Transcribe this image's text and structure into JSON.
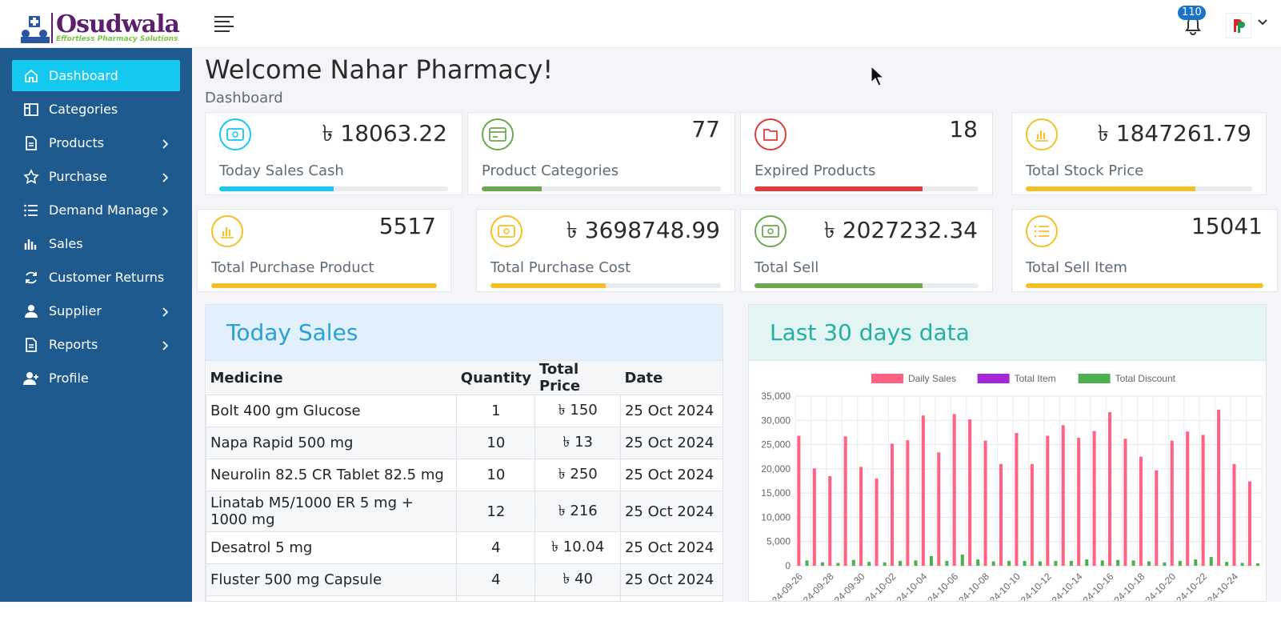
{
  "header": {
    "logo_text": "Osudwala",
    "logo_subtitle": "Effortless Pharmacy Solutions",
    "notification_count": "110"
  },
  "sidebar": {
    "items": [
      {
        "label": "Dashboard",
        "icon": "home-icon",
        "has_arrow": false,
        "active": true
      },
      {
        "label": "Categories",
        "icon": "columns-icon",
        "has_arrow": false
      },
      {
        "label": "Products",
        "icon": "document-icon",
        "has_arrow": true
      },
      {
        "label": "Purchase",
        "icon": "star-icon",
        "has_arrow": true
      },
      {
        "label": "Demand Manage",
        "icon": "list-icon",
        "has_arrow": true
      },
      {
        "label": "Sales",
        "icon": "bar-chart-icon",
        "has_arrow": false
      },
      {
        "label": "Customer Returns",
        "icon": "refresh-icon",
        "has_arrow": false
      },
      {
        "label": "Supplier",
        "icon": "user-icon",
        "has_arrow": true
      },
      {
        "label": "Reports",
        "icon": "document-icon",
        "has_arrow": true
      },
      {
        "label": "Profile",
        "icon": "user-plus-icon",
        "has_arrow": false
      }
    ]
  },
  "page": {
    "welcome": "Welcome Nahar Pharmacy!",
    "breadcrumb": "Dashboard"
  },
  "stats": [
    {
      "label": "Today Sales Cash",
      "value": "৳ 18063.22",
      "color": "#14c8ef",
      "progress": 0.5,
      "icon": "money-icon"
    },
    {
      "label": "Product Categories",
      "value": "77",
      "color": "#6aa84f",
      "progress": 0.25,
      "icon": "card-icon"
    },
    {
      "label": "Expired Products",
      "value": "18",
      "color": "#e03a3e",
      "progress": 0.75,
      "icon": "folder-icon"
    },
    {
      "label": "Total Stock Price",
      "value": "৳ 1847261.79",
      "color": "#f3c026",
      "progress": 0.75,
      "icon": "bar-chart-icon"
    },
    {
      "label": "Total Purchase Product",
      "value": "5517",
      "color": "#f3c026",
      "progress": 1.0,
      "icon": "bar-chart-icon"
    },
    {
      "label": "Total Purchase Cost",
      "value": "৳ 3698748.99",
      "color": "#f3c026",
      "progress": 0.5,
      "icon": "money-icon"
    },
    {
      "label": "Total Sell",
      "value": "৳ 2027232.34",
      "color": "#6aa84f",
      "progress": 0.75,
      "icon": "money-icon"
    },
    {
      "label": "Total Sell Item",
      "value": "15041",
      "color": "#f3c026",
      "progress": 1.0,
      "icon": "list-icon"
    }
  ],
  "today_sales": {
    "title": "Today Sales",
    "columns": [
      "Medicine",
      "Quantity",
      "Total Price",
      "Date"
    ],
    "rows": [
      [
        "Bolt 400 gm Glucose",
        "1",
        "৳ 150",
        "25 Oct 2024"
      ],
      [
        "Napa Rapid 500 mg",
        "10",
        "৳ 13",
        "25 Oct 2024"
      ],
      [
        "Neurolin 82.5 CR Tablet 82.5 mg",
        "10",
        "৳ 250",
        "25 Oct 2024"
      ],
      [
        "Linatab M5/1000 ER 5 mg + 1000 mg",
        "12",
        "৳ 216",
        "25 Oct 2024"
      ],
      [
        "Desatrol 5 mg",
        "4",
        "৳ 10.04",
        "25 Oct 2024"
      ],
      [
        "Fluster 500 mg Capsule",
        "4",
        "৳ 40",
        "25 Oct 2024"
      ]
    ]
  },
  "last30": {
    "title": "Last 30 days data"
  },
  "chart_data": {
    "type": "bar",
    "categories": [
      "2024-09-26",
      "2024-09-27",
      "2024-09-28",
      "2024-09-29",
      "2024-09-30",
      "2024-10-01",
      "2024-10-02",
      "2024-10-03",
      "2024-10-04",
      "2024-10-05",
      "2024-10-06",
      "2024-10-07",
      "2024-10-08",
      "2024-10-09",
      "2024-10-10",
      "2024-10-11",
      "2024-10-12",
      "2024-10-13",
      "2024-10-14",
      "2024-10-15",
      "2024-10-16",
      "2024-10-17",
      "2024-10-18",
      "2024-10-19",
      "2024-10-20",
      "2024-10-21",
      "2024-10-22",
      "2024-10-23",
      "2024-10-24",
      "2024-10-25"
    ],
    "tick_labels": [
      "2024-09-26",
      "2024-09-28",
      "2024-09-30",
      "2024-10-02",
      "2024-10-04",
      "2024-10-06",
      "2024-10-08",
      "2024-10-10",
      "2024-10-12",
      "2024-10-14",
      "2024-10-16",
      "2024-10-18",
      "2024-10-20",
      "2024-10-22",
      "2024-10-24"
    ],
    "series": [
      {
        "name": "Daily Sales",
        "color": "#ff6384",
        "values": [
          26800,
          20100,
          18500,
          26700,
          20400,
          18000,
          25200,
          25900,
          31000,
          23400,
          31300,
          30200,
          25800,
          21000,
          27400,
          21000,
          26800,
          29000,
          26400,
          27800,
          31700,
          26200,
          22500,
          19700,
          25800,
          27700,
          27000,
          32200,
          21000,
          17400
        ]
      },
      {
        "name": "Total Item",
        "color": "#a526d9",
        "values": [
          0,
          0,
          0,
          0,
          0,
          0,
          0,
          0,
          0,
          0,
          0,
          0,
          0,
          0,
          0,
          0,
          0,
          0,
          0,
          0,
          0,
          0,
          0,
          0,
          0,
          0,
          0,
          0,
          0,
          0
        ]
      },
      {
        "name": "Total Discount",
        "color": "#4caf50",
        "values": [
          1100,
          700,
          600,
          1200,
          800,
          700,
          1000,
          1100,
          2000,
          1000,
          2300,
          1300,
          900,
          1000,
          1000,
          900,
          1000,
          1000,
          1300,
          1100,
          1200,
          1100,
          900,
          700,
          1000,
          1300,
          1800,
          800,
          600,
          500
        ]
      }
    ],
    "y_ticks": [
      "0",
      "5,000",
      "10,000",
      "15,000",
      "20,000",
      "25,000",
      "30,000",
      "35,000"
    ],
    "ylim": [
      0,
      35000
    ],
    "grid": true,
    "legend": "top"
  }
}
